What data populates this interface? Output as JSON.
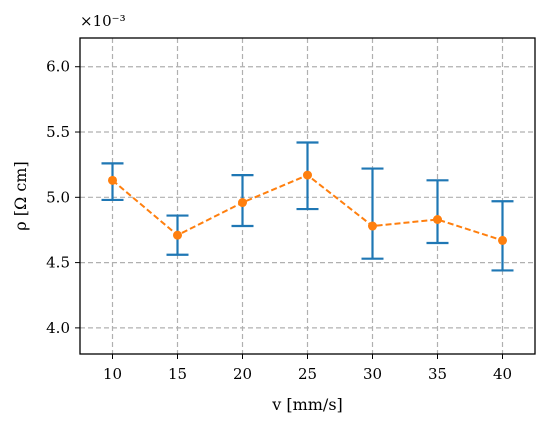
{
  "chart_data": {
    "type": "line",
    "title": "",
    "xlabel": "v [mm/s]",
    "ylabel": "ρ [Ω cm]",
    "y_scale_label": "×10⁻³",
    "x": [
      10,
      15,
      20,
      25,
      30,
      35,
      40
    ],
    "series": [
      {
        "values": [
          5.13,
          4.71,
          4.96,
          5.17,
          4.78,
          4.83,
          4.67
        ],
        "error_low": [
          4.98,
          4.56,
          4.78,
          4.91,
          4.53,
          4.65,
          4.44
        ],
        "error_high": [
          5.26,
          4.86,
          5.17,
          5.42,
          5.22,
          5.13,
          4.97
        ],
        "line_color": "#ff7f0e",
        "line_style": "dashed",
        "marker": "circle",
        "errorbar_color": "#1f77b4"
      }
    ],
    "xticks": [
      10,
      15,
      20,
      25,
      30,
      35,
      40
    ],
    "xtick_labels": [
      "10",
      "15",
      "20",
      "25",
      "30",
      "35",
      "40"
    ],
    "yticks": [
      4.0,
      4.5,
      5.0,
      5.5,
      6.0
    ],
    "ytick_labels": [
      "4.0",
      "4.5",
      "5.0",
      "5.5",
      "6.0"
    ],
    "xlim": [
      7.5,
      42.5
    ],
    "ylim": [
      3.8,
      6.22
    ],
    "grid": true,
    "grid_color": "#b0b0b0",
    "grid_style": "dashed",
    "legend": "none"
  }
}
